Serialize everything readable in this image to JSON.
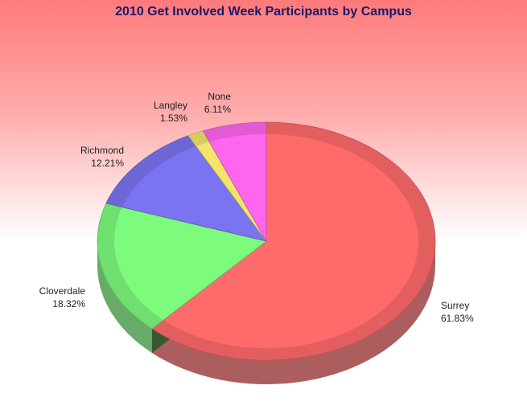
{
  "chart_data": {
    "type": "pie",
    "title": "2010 Get Involved Week Participants by Campus",
    "slices": [
      {
        "label": "Surrey",
        "pct_label": "61.83%",
        "value": 61.83,
        "color": "#ff6a6a"
      },
      {
        "label": "Cloverdale",
        "pct_label": "18.32%",
        "value": 18.32,
        "color": "#7dfb7d"
      },
      {
        "label": "Richmond",
        "pct_label": "12.21%",
        "value": 12.21,
        "color": "#7b74f0"
      },
      {
        "label": "Langley",
        "pct_label": "1.53%",
        "value": 1.53,
        "color": "#f3e46a"
      },
      {
        "label": "None",
        "pct_label": "6.11%",
        "value": 6.11,
        "color": "#ff66ee"
      }
    ],
    "legend": "none",
    "style": "3d-exploded-pie"
  }
}
